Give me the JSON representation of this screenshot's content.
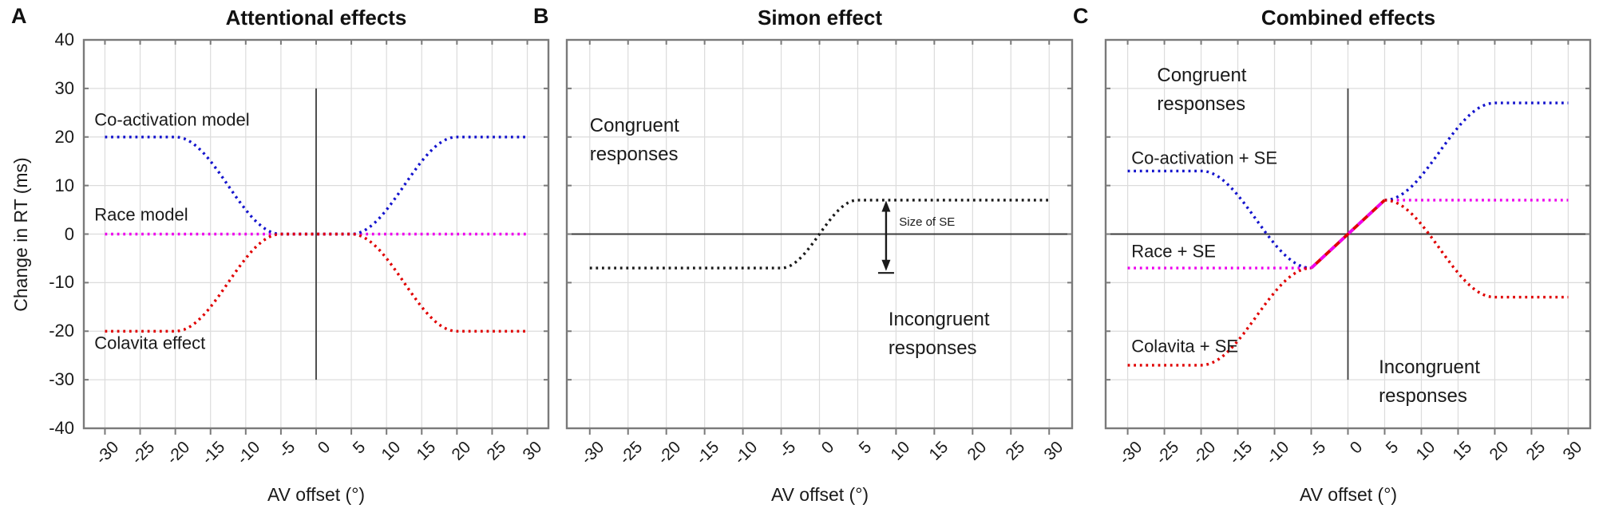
{
  "figure": {
    "background": "#ffffff"
  },
  "axes": {
    "x_label": "AV offset (°)",
    "y_label": "Change in RT (ms)",
    "x_ticks": [
      -30,
      -25,
      -20,
      -15,
      -10,
      -5,
      0,
      5,
      10,
      15,
      20,
      25,
      30
    ],
    "y_ticks": [
      40,
      30,
      20,
      10,
      0,
      -10,
      -20,
      -30,
      -40
    ],
    "x_range": [
      -33,
      33
    ],
    "y_range": [
      -40,
      40
    ],
    "grid": true
  },
  "colors": {
    "blue": "#1414cd",
    "magenta": "#ee00ee",
    "red": "#e00000",
    "black": "#1a1a1a",
    "grid": "#dcdcdc",
    "border": "#7a7a7a",
    "zero_line": "#3c3c3c"
  },
  "chart_data": [
    {
      "id": "attentional",
      "letter": "A",
      "title": "Attentional effects",
      "type": "line",
      "show_y_tick_labels": true,
      "zero_lines": {
        "vertical": [
          -30,
          30
        ],
        "horizontal": false
      },
      "series": [
        {
          "name": "Race model",
          "color_key": "magenta",
          "style": "dotted",
          "smooth": false,
          "points": [
            [
              -30,
              0
            ],
            [
              30,
              0
            ]
          ]
        },
        {
          "name": "Co-activation model",
          "color_key": "blue",
          "style": "dotted",
          "smooth": true,
          "points": [
            [
              -30,
              20
            ],
            [
              -20,
              20
            ],
            [
              -5,
              0
            ],
            [
              5,
              0
            ],
            [
              20,
              20
            ],
            [
              30,
              20
            ]
          ]
        },
        {
          "name": "Colavita effect",
          "color_key": "red",
          "style": "dotted",
          "smooth": true,
          "points": [
            [
              -30,
              -20
            ],
            [
              -20,
              -20
            ],
            [
              -5,
              0
            ],
            [
              5,
              0
            ],
            [
              20,
              -20
            ],
            [
              30,
              -20
            ]
          ]
        }
      ],
      "annotations": [
        {
          "text": "Co-activation model",
          "x": -31.5,
          "y": 23.5,
          "size": "md"
        },
        {
          "text": "Race model",
          "x": -31.5,
          "y": 4,
          "size": "md"
        },
        {
          "text": "Colavita effect",
          "x": -31.5,
          "y": -22.5,
          "size": "md"
        }
      ]
    },
    {
      "id": "simon",
      "letter": "B",
      "title": "Simon effect",
      "type": "line",
      "show_y_tick_labels": false,
      "zero_lines": {
        "vertical": false,
        "horizontal": true
      },
      "series": [
        {
          "name": "Simon effect",
          "color_key": "black",
          "style": "dotted",
          "smooth": true,
          "points": [
            [
              -30,
              -7
            ],
            [
              -5,
              -7
            ],
            [
              5,
              7
            ],
            [
              30,
              7
            ]
          ]
        }
      ],
      "annotations": [
        {
          "text": "Congruent\nresponses",
          "x": -30,
          "y": 19.3,
          "size": "lg"
        },
        {
          "text": "Incongruent\nresponses",
          "x": 9,
          "y": -20.6,
          "size": "lg"
        },
        {
          "text": "Size of SE",
          "x": 10.4,
          "y": 2.3,
          "size": "sm"
        }
      ],
      "arrow": {
        "x": 8.7,
        "y_top": 6.9,
        "y_bottom": -7.6,
        "cap_y": -8.0,
        "meaning": "Size of SE"
      }
    },
    {
      "id": "combined",
      "letter": "C",
      "title": "Combined effects",
      "type": "line",
      "show_y_tick_labels": false,
      "zero_lines": {
        "vertical": [
          -30,
          30
        ],
        "horizontal": true
      },
      "series": [
        {
          "name": "Race + SE (left)",
          "color_key": "magenta",
          "style": "dotted",
          "smooth": false,
          "points": [
            [
              -30,
              -7
            ],
            [
              -5,
              -7
            ]
          ]
        },
        {
          "name": "Race + SE (right)",
          "color_key": "magenta",
          "style": "dotted",
          "smooth": false,
          "points": [
            [
              5,
              7
            ],
            [
              30,
              7
            ]
          ]
        },
        {
          "name": "Co-activation + SE (left)",
          "color_key": "blue",
          "style": "dotted",
          "smooth": true,
          "points": [
            [
              -30,
              13
            ],
            [
              -20,
              13
            ],
            [
              -5,
              -7
            ]
          ]
        },
        {
          "name": "Co-activation + SE (right)",
          "color_key": "blue",
          "style": "dotted",
          "smooth": true,
          "points": [
            [
              5,
              7
            ],
            [
              20,
              27
            ],
            [
              30,
              27
            ]
          ]
        },
        {
          "name": "Colavita + SE (left)",
          "color_key": "red",
          "style": "dotted",
          "smooth": true,
          "points": [
            [
              -30,
              -27
            ],
            [
              -20,
              -27
            ],
            [
              -5,
              -7
            ]
          ]
        },
        {
          "name": "Colavita + SE (right)",
          "color_key": "red",
          "style": "dotted",
          "smooth": true,
          "points": [
            [
              5,
              7
            ],
            [
              20,
              -13
            ],
            [
              30,
              -13
            ]
          ]
        },
        {
          "name": "Shared transition (all models)",
          "color_key": "red",
          "style": "solid",
          "smooth": false,
          "points": [
            [
              -5,
              -7
            ],
            [
              5,
              7
            ]
          ]
        },
        {
          "name": "Shared transition overlay",
          "color_key": "magenta",
          "style": "solid-dash",
          "smooth": false,
          "points": [
            [
              -5,
              -7
            ],
            [
              5,
              7
            ]
          ]
        }
      ],
      "annotations": [
        {
          "text": "Congruent\nresponses",
          "x": -26,
          "y": 29.6,
          "size": "lg"
        },
        {
          "text": "Co-activation + SE",
          "x": -29.5,
          "y": 15.7,
          "size": "md"
        },
        {
          "text": "Race + SE",
          "x": -29.5,
          "y": -3.6,
          "size": "md"
        },
        {
          "text": "Colavita + SE",
          "x": -29.5,
          "y": -23,
          "size": "md"
        },
        {
          "text": "Incongruent\nresponses",
          "x": 4.2,
          "y": -30.5,
          "size": "lg"
        }
      ]
    }
  ]
}
